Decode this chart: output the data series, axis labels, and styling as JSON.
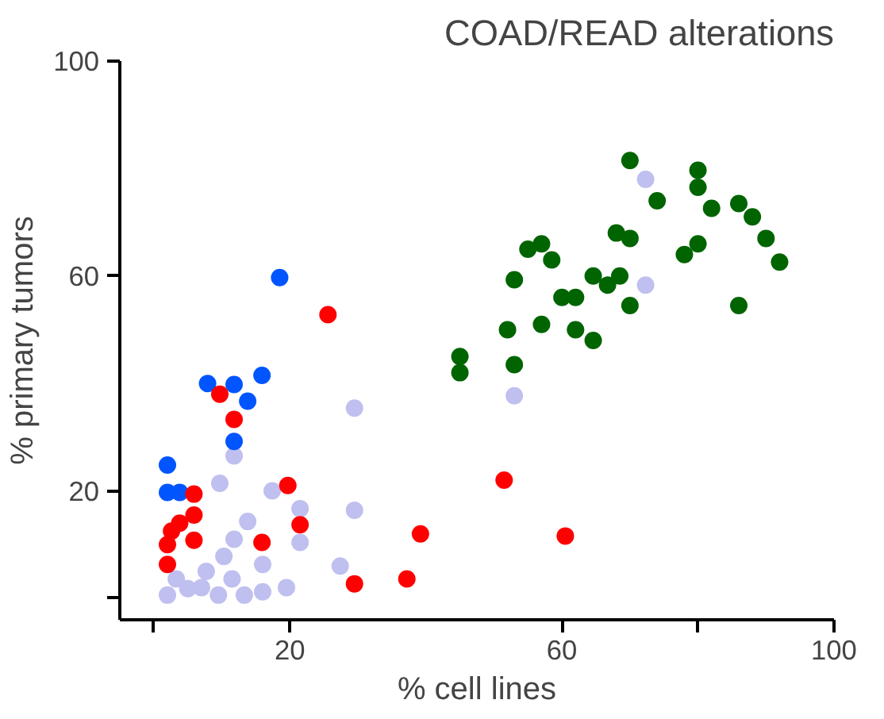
{
  "chart_data": {
    "type": "scatter",
    "title": "COAD/READ alterations",
    "xlabel": "% cell lines",
    "ylabel": "% primary tumors",
    "xlim": [
      -5,
      100
    ],
    "ylim": [
      -4,
      100
    ],
    "xticks": [
      {
        "value": 0,
        "label": null
      },
      20,
      60,
      {
        "value": 80,
        "label": null
      },
      100
    ],
    "yticks": [
      {
        "value": 0,
        "label": null
      },
      20,
      60,
      100
    ],
    "grid": false,
    "marker": "circle",
    "series": [
      {
        "color": "#bfbff0",
        "x": [
          72.3,
          72.3,
          53,
          29.5,
          11.8,
          9.7,
          17.4,
          21.5,
          29.5,
          21.5,
          13.8,
          11.8,
          27.4,
          19.5,
          16,
          16,
          2,
          5,
          7.7,
          9.5,
          11.5,
          13.3,
          7,
          3.3,
          10.3
        ],
        "values": [
          78,
          58.3,
          37.7,
          35.4,
          26.5,
          21.4,
          20,
          16.7,
          16.4,
          10.4,
          14.3,
          11,
          6,
          2,
          6.3,
          1.2,
          0.6,
          1.8,
          5,
          0.6,
          3.6,
          0.6,
          2,
          3.6,
          7.8
        ]
      },
      {
        "color": "#006400",
        "x": [
          70,
          80,
          80,
          74,
          82,
          86,
          88,
          90,
          92,
          68,
          70,
          78,
          80,
          86,
          55,
          57,
          58.5,
          53,
          64.6,
          68.5,
          66.7,
          60,
          62,
          70,
          52,
          57,
          62,
          64.6,
          45,
          45,
          53
        ],
        "values": [
          81.5,
          79.7,
          76.5,
          74,
          72.6,
          73.5,
          71,
          67,
          62.6,
          68,
          67,
          64,
          66,
          54.5,
          65,
          66,
          63,
          59.3,
          60,
          60,
          58.3,
          56,
          56,
          54.5,
          50,
          51,
          50,
          48,
          45,
          42,
          43.5
        ]
      },
      {
        "color": "#0055ff",
        "x": [
          18.5,
          7.9,
          11.8,
          13.8,
          15.9,
          11.8,
          2,
          2,
          3.8
        ],
        "values": [
          59.7,
          40,
          39.8,
          36.7,
          41.5,
          29.2,
          24.8,
          19.7,
          19.7
        ]
      },
      {
        "color": "#ff0000",
        "x": [
          25.6,
          9.7,
          11.8,
          19.7,
          5.9,
          5.9,
          3.8,
          21.5,
          15.9,
          39.2,
          51.5,
          29.5,
          37.2,
          2,
          2,
          5.9,
          2.6,
          60.5
        ],
        "values": [
          52.8,
          38,
          33.3,
          21,
          19.4,
          15.5,
          14,
          13.7,
          10.4,
          12,
          22,
          2.7,
          3.6,
          10,
          6.3,
          10.8,
          12.5,
          11.6
        ]
      }
    ]
  }
}
